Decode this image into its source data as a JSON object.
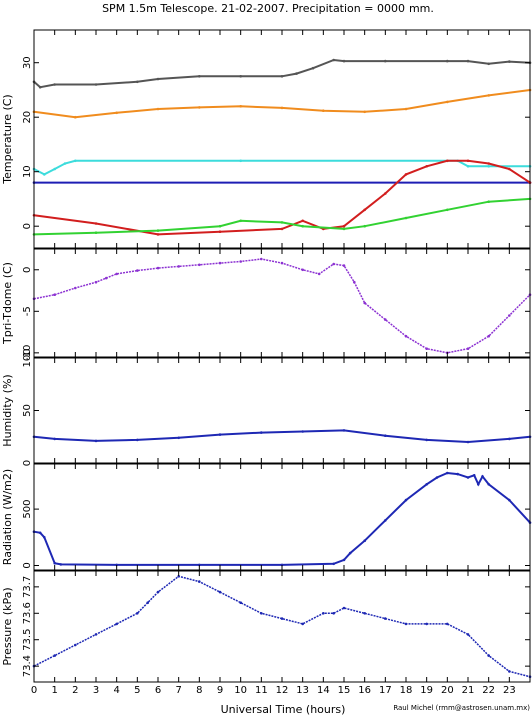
{
  "title": "SPM 1.5m Telescope. 21-02-2007. Precipitation = 0000",
  "title_unit": "mm.",
  "credit": "Raul Michel (rmm@astrosen.unam.mx)",
  "colors": {
    "dark_gray": "#555555",
    "orange": "#f08c1e",
    "cyan": "#3cdcdc",
    "navy": "#1e1eb4",
    "red": "#d21e1e",
    "green": "#32d232",
    "purple": "#8c32d2",
    "blue": "#1e28b4"
  },
  "chart_data": [
    {
      "type": "line",
      "ylabel": "Temperature (C)",
      "xlim": [
        0,
        24
      ],
      "ylim": [
        -4,
        36
      ],
      "yticks": [
        0,
        10,
        20,
        30
      ],
      "series": [
        {
          "color": "dark_gray",
          "x": [
            0,
            0.3,
            1,
            3,
            5,
            6,
            8,
            10,
            12,
            12.7,
            13.5,
            14.5,
            15,
            17,
            20,
            21,
            22,
            23,
            24
          ],
          "y": [
            26.5,
            25.5,
            26,
            26,
            26.5,
            27,
            27.5,
            27.5,
            27.5,
            28,
            29,
            30.5,
            30.3,
            30.3,
            30.3,
            30.3,
            29.8,
            30.2,
            30
          ]
        },
        {
          "color": "orange",
          "x": [
            0,
            2,
            4,
            6,
            8,
            10,
            12,
            14,
            16,
            18,
            20,
            22,
            24
          ],
          "y": [
            21,
            20,
            20.8,
            21.5,
            21.8,
            22,
            21.7,
            21.2,
            21,
            21.5,
            22.8,
            24,
            25
          ]
        },
        {
          "color": "cyan",
          "x": [
            0,
            0.5,
            1,
            1.5,
            2,
            10,
            20,
            20.5,
            21,
            22,
            24
          ],
          "y": [
            10.5,
            9.5,
            10.5,
            11.5,
            12,
            12,
            12,
            12,
            11,
            11,
            11
          ]
        },
        {
          "color": "navy",
          "x": [
            0,
            24
          ],
          "y": [
            8,
            8
          ]
        },
        {
          "color": "red",
          "x": [
            0,
            3,
            6,
            9,
            12,
            13,
            14,
            15,
            16,
            17,
            18,
            19,
            20,
            21,
            22,
            23,
            24
          ],
          "y": [
            2,
            0.5,
            -1.5,
            -1,
            -0.5,
            1,
            -0.5,
            0,
            3,
            6,
            9.5,
            11,
            12,
            12,
            11.5,
            10.5,
            8
          ]
        },
        {
          "color": "green",
          "x": [
            0,
            3,
            6,
            9,
            10,
            12,
            13,
            15,
            16,
            18,
            20,
            22,
            24
          ],
          "y": [
            -1.5,
            -1.2,
            -0.8,
            0,
            1,
            0.7,
            0,
            -0.5,
            0,
            1.5,
            3,
            4.5,
            5
          ]
        }
      ]
    },
    {
      "type": "scatter",
      "ylabel": "Tpri-Tdome (C)",
      "xlim": [
        0,
        24
      ],
      "ylim": [
        -10.5,
        2.5
      ],
      "yticks": [
        -10,
        -5,
        0
      ],
      "series": [
        {
          "color": "purple",
          "x": [
            0,
            1,
            2,
            3,
            3.5,
            4,
            5,
            6,
            7,
            8,
            9,
            10,
            11,
            12,
            13,
            13.8,
            14.5,
            15,
            15.5,
            16,
            17,
            18,
            19,
            20,
            21,
            22,
            23,
            24
          ],
          "y": [
            -3.5,
            -3,
            -2.2,
            -1.5,
            -1,
            -0.5,
            -0.1,
            0.2,
            0.4,
            0.6,
            0.8,
            1,
            1.3,
            0.8,
            0,
            -0.5,
            0.7,
            0.5,
            -1.5,
            -4,
            -6,
            -8,
            -9.5,
            -10,
            -9.5,
            -8,
            -5.5,
            -3
          ]
        }
      ]
    },
    {
      "type": "line",
      "ylabel": "Humidity (%)",
      "xlim": [
        0,
        24
      ],
      "ylim": [
        0,
        100
      ],
      "yticks": [
        0,
        50,
        100
      ],
      "series": [
        {
          "color": "blue",
          "x": [
            0,
            1,
            3,
            5,
            7,
            9,
            11,
            13,
            15,
            17,
            19,
            21,
            23,
            24
          ],
          "y": [
            25,
            23,
            21,
            22,
            24,
            27,
            29,
            30,
            31,
            26,
            22,
            20,
            23,
            25
          ]
        }
      ]
    },
    {
      "type": "line",
      "ylabel": "Radiation (W/m2)",
      "xlim": [
        0,
        24
      ],
      "ylim": [
        -40,
        900
      ],
      "yticks": [
        0,
        500
      ],
      "series": [
        {
          "color": "blue",
          "x": [
            0,
            0.3,
            0.5,
            1,
            1.3,
            4,
            8,
            12,
            14.5,
            15,
            15.3,
            16,
            17,
            18,
            19,
            19.5,
            20,
            20.5,
            21,
            21.3,
            21.5,
            21.7,
            22,
            23,
            24
          ],
          "y": [
            300,
            290,
            250,
            20,
            10,
            5,
            5,
            5,
            15,
            50,
            110,
            220,
            400,
            580,
            720,
            780,
            820,
            810,
            780,
            800,
            720,
            790,
            720,
            580,
            380
          ]
        }
      ]
    },
    {
      "type": "scatter",
      "ylabel": "Pressure (kPa)",
      "xlim": [
        0,
        24
      ],
      "ylim": [
        73.34,
        73.76
      ],
      "yticks": [
        73.4,
        73.5,
        73.6,
        73.7
      ],
      "yticklabels": [
        "73.4",
        "73.5",
        "73.6",
        "73.7"
      ],
      "series": [
        {
          "color": "blue",
          "x": [
            0,
            1,
            2,
            3,
            4,
            5,
            5.5,
            6,
            7,
            8,
            9,
            10,
            11,
            12,
            13,
            14,
            14.5,
            15,
            16,
            17,
            18,
            19,
            20,
            21,
            22,
            23,
            24
          ],
          "y": [
            73.4,
            73.44,
            73.48,
            73.52,
            73.56,
            73.6,
            73.64,
            73.68,
            73.74,
            73.72,
            73.68,
            73.64,
            73.6,
            73.58,
            73.56,
            73.6,
            73.6,
            73.62,
            73.6,
            73.58,
            73.56,
            73.56,
            73.56,
            73.52,
            73.44,
            73.38,
            73.36
          ]
        }
      ]
    }
  ],
  "xaxis": {
    "label": "Universal Time (hours)",
    "ticks": [
      0,
      1,
      2,
      3,
      4,
      5,
      6,
      7,
      8,
      9,
      10,
      11,
      12,
      13,
      14,
      15,
      16,
      17,
      18,
      19,
      20,
      21,
      22,
      23
    ]
  }
}
